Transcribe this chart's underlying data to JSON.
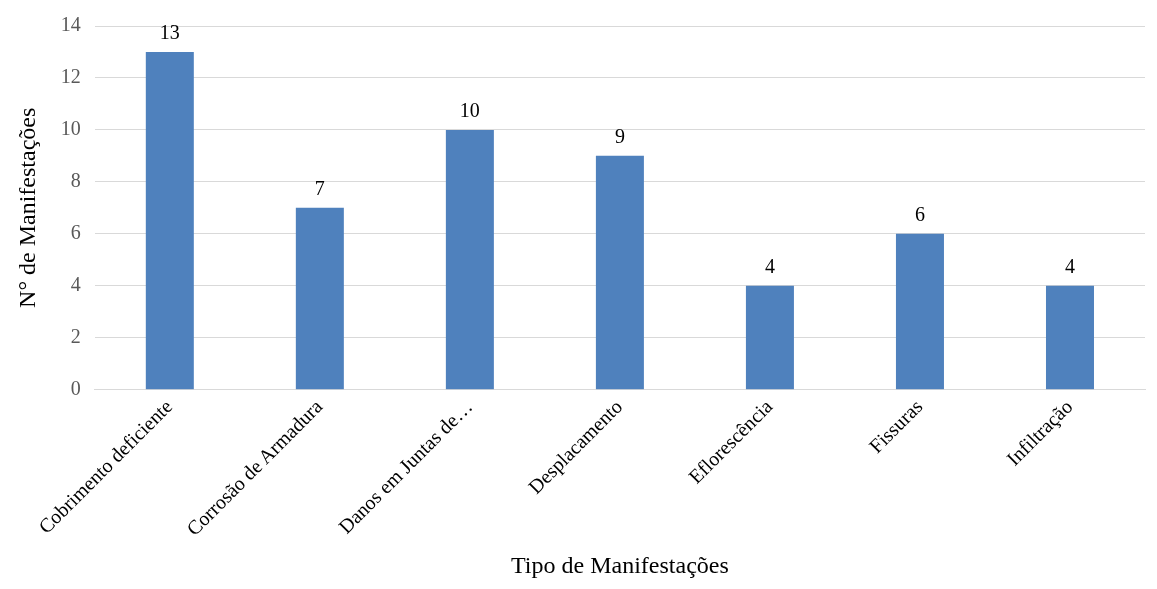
{
  "chart_data": {
    "type": "bar",
    "xlabel": "Tipo de Manifestações",
    "ylabel": "N° de Manifestações",
    "categories": [
      "Cobrimento deficiente",
      "Corrosão de Armadura",
      "Danos em Juntas de…",
      "Desplacamento",
      "Eflorescência",
      "Fissuras",
      "Infiltração"
    ],
    "values": [
      13,
      7,
      10,
      9,
      4,
      6,
      4
    ],
    "color": "#4f81bd",
    "ylim": [
      0,
      14
    ],
    "yticks": [
      0,
      2,
      4,
      6,
      8,
      10,
      12,
      14
    ],
    "grid": "y",
    "data_labels": true
  }
}
